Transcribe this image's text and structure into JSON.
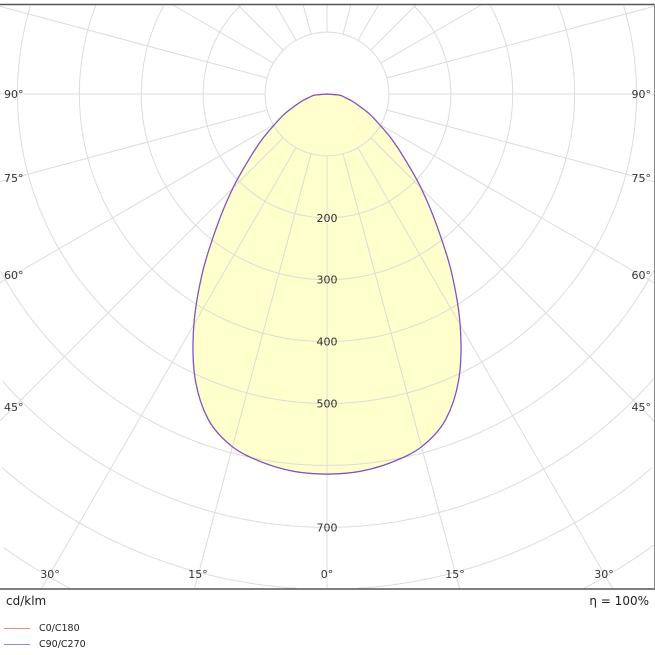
{
  "chart_data": {
    "type": "polar",
    "unit_label": "cd/klm",
    "efficiency_label": "η = 100%",
    "angle_tick_labels": {
      "left": [
        "90°",
        "75°",
        "60°",
        "45°",
        "30°",
        "15°"
      ],
      "center": "0°",
      "right": [
        "90°",
        "75°",
        "60°",
        "45°",
        "30°",
        "15°"
      ]
    },
    "radial_tick_labels": [
      "200",
      "300",
      "400",
      "500",
      "700"
    ],
    "radial_tick_values": [
      200,
      300,
      400,
      500,
      700
    ],
    "ring_step": 100,
    "spoke_step_deg": 15,
    "grid": true,
    "legend_placement": "bottom-left",
    "angles_deg": [
      0,
      5,
      10,
      15,
      20,
      25,
      30,
      35,
      40,
      45,
      50,
      55,
      60,
      65,
      70,
      75,
      80,
      85,
      90
    ],
    "series": [
      {
        "name": "C0/C180",
        "color": "#e88a8a",
        "values": [
          614,
          612,
          604,
          590,
          560,
          505,
          430,
          350,
          275,
          215,
          165,
          128,
          97,
          75,
          54,
          40,
          28,
          20,
          0
        ]
      },
      {
        "name": "C90/C270",
        "color": "#8a8ae8",
        "values": [
          614,
          612,
          604,
          590,
          560,
          505,
          430,
          350,
          275,
          215,
          165,
          128,
          97,
          75,
          54,
          40,
          28,
          20,
          0
        ]
      }
    ],
    "colors": {
      "fill": "#ffffc4",
      "curve": "#7a55c8",
      "grid": "#d6d6d6",
      "frame": "#555555"
    }
  }
}
